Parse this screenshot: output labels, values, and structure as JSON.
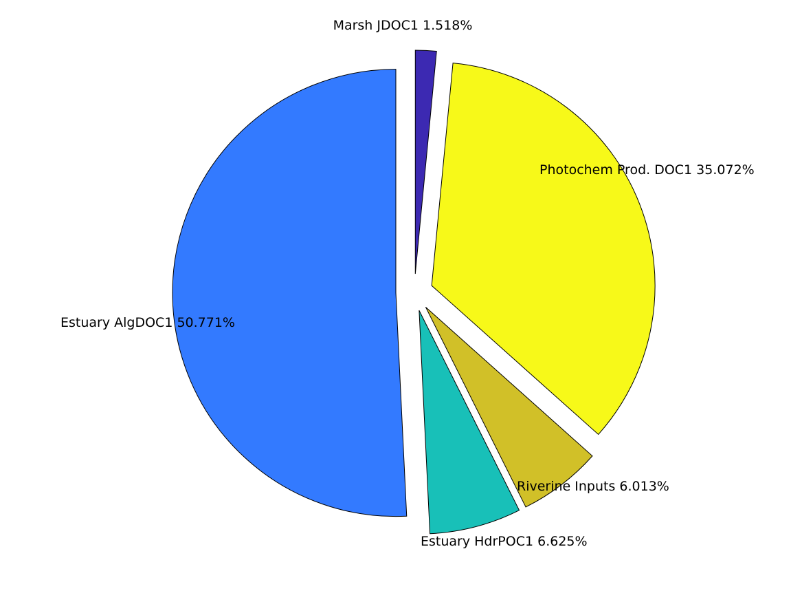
{
  "chart_data": {
    "type": "pie",
    "title": "",
    "slices": [
      {
        "label": "Marsh JDOC1 1.518%",
        "value": 1.518,
        "color": "#3c29b2",
        "exploded": true
      },
      {
        "label": "Photochem Prod. DOC1 35.072%",
        "value": 35.072,
        "color": "#f7f919",
        "exploded": true
      },
      {
        "label": "Riverine Inputs 6.013%",
        "value": 6.013,
        "color": "#d1c028",
        "exploded": true
      },
      {
        "label": "Estuary HdrPOC1 6.625%",
        "value": 6.625,
        "color": "#18c0b8",
        "exploded": true
      },
      {
        "label": "Estuary AlgDOC1 50.771%",
        "value": 50.771,
        "color": "#337aff",
        "exploded": true
      }
    ]
  }
}
